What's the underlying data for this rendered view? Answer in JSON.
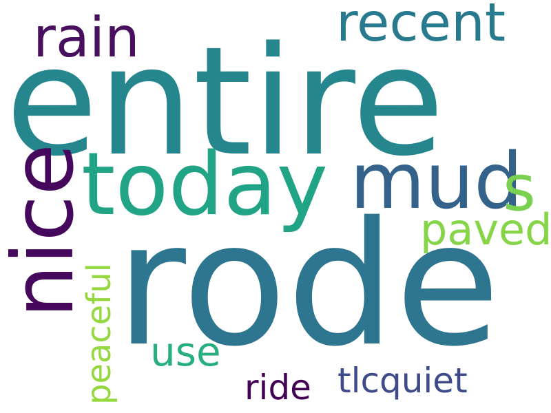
{
  "words": {
    "entire": {
      "text": "entire",
      "color": "#26868d"
    },
    "rode": {
      "text": "rode",
      "color": "#2e7590"
    },
    "today": {
      "text": "today",
      "color": "#21a386"
    },
    "mud": {
      "text": "mud",
      "color": "#35628b"
    },
    "rain": {
      "text": "rain",
      "color": "#470f5e"
    },
    "recent": {
      "text": "recent",
      "color": "#287a8e"
    },
    "nice": {
      "text": "nice",
      "color": "#46085c"
    },
    "s": {
      "text": "s",
      "color": "#7ad151"
    },
    "paved": {
      "text": "paved",
      "color": "#86d549"
    },
    "peaceful": {
      "text": "peaceful",
      "color": "#95d840"
    },
    "use": {
      "text": "use",
      "color": "#28ae80"
    },
    "ride": {
      "text": "ride",
      "color": "#440154"
    },
    "tlcquiet": {
      "text": "tlcquiet",
      "color": "#3e4a89"
    }
  }
}
